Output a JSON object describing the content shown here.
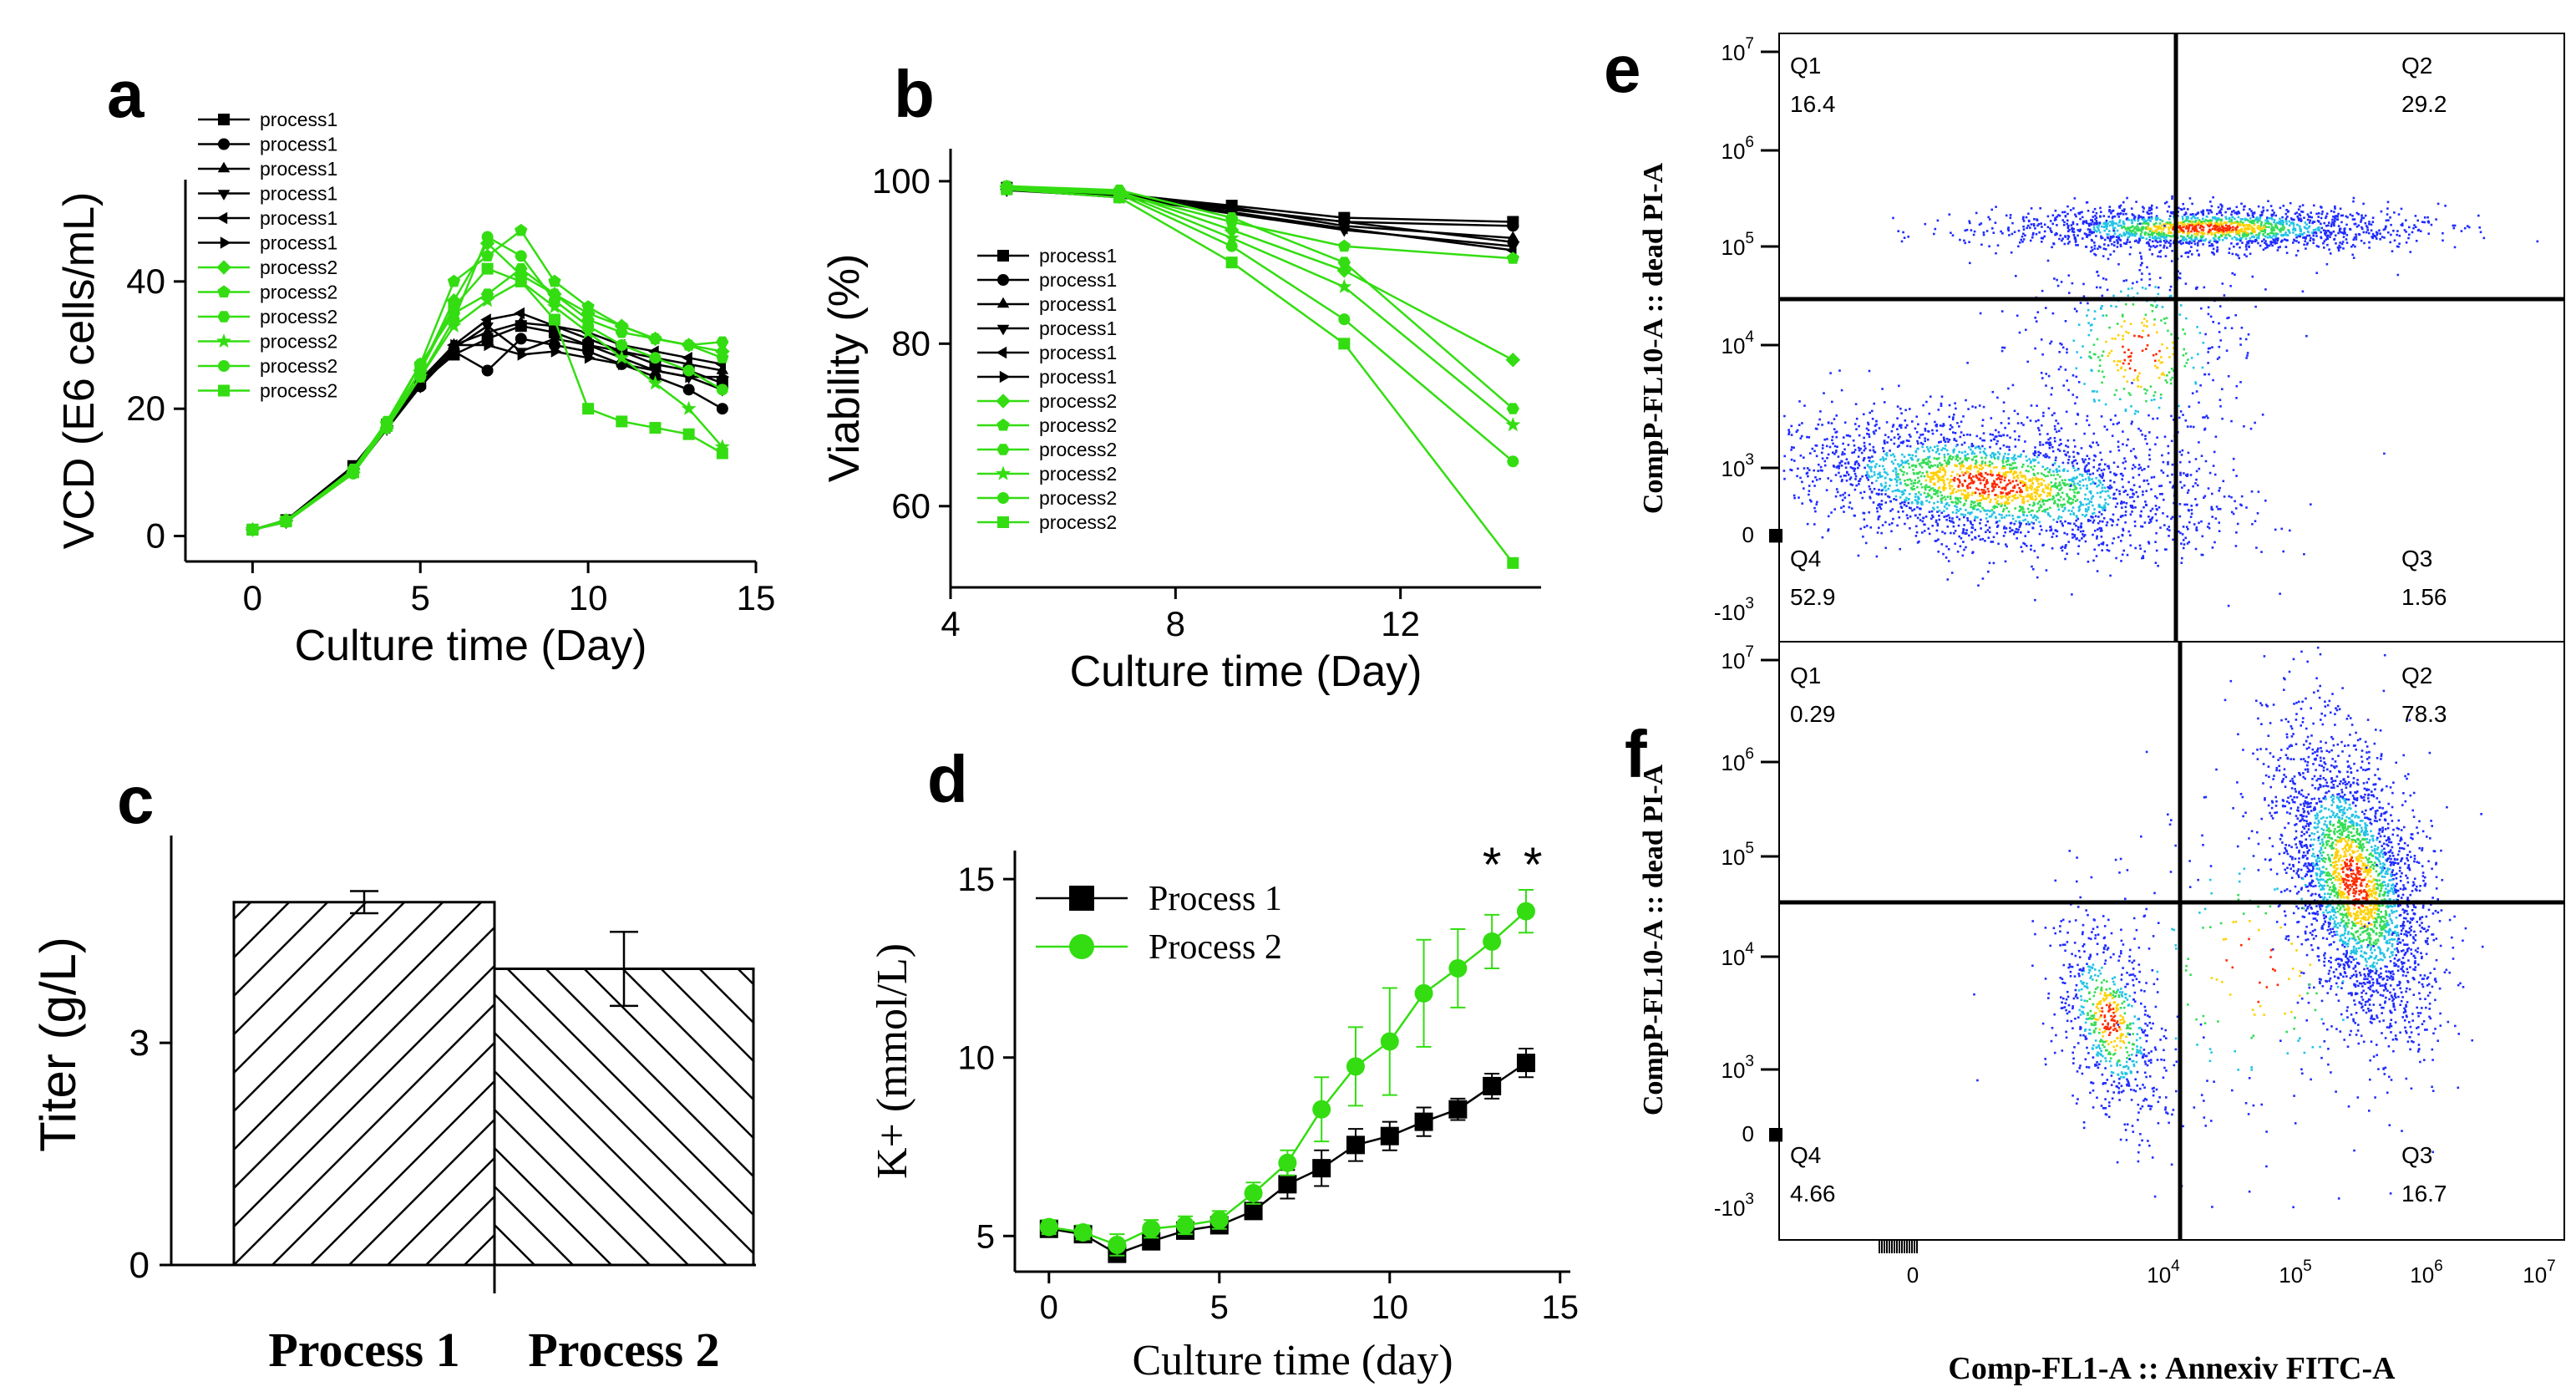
{
  "chart_data": [
    {
      "panel": "a",
      "type": "line",
      "xlabel": "Culture time (Day)",
      "ylabel": "VCD (E6 cells/mL)",
      "xlim": [
        -2,
        15
      ],
      "ylim": [
        -4,
        56
      ],
      "xticks": [
        0,
        5,
        10,
        15
      ],
      "yticks": [
        0,
        20,
        40
      ],
      "legend_position": "top-left",
      "colors": {
        "process1": "#000000",
        "process2": "#33dd11"
      },
      "series": [
        {
          "name": "process1",
          "group": 1,
          "marker": "square",
          "x": [
            0,
            1,
            3,
            4,
            5,
            6,
            7,
            8,
            9,
            10,
            11,
            12,
            13,
            14
          ],
          "y": [
            1,
            2.5,
            11,
            17.5,
            24,
            28.5,
            31,
            33,
            32,
            30,
            29,
            27,
            26,
            24
          ]
        },
        {
          "name": "process1",
          "group": 1,
          "marker": "circle",
          "x": [
            0,
            1,
            3,
            4,
            5,
            6,
            7,
            8,
            9,
            10,
            11,
            12,
            13,
            14
          ],
          "y": [
            1,
            2.3,
            10.5,
            17,
            23.5,
            29,
            26,
            31,
            30,
            29,
            27,
            25,
            23,
            20
          ]
        },
        {
          "name": "process1",
          "group": 1,
          "marker": "triangle-up",
          "x": [
            0,
            1,
            3,
            4,
            5,
            6,
            7,
            8,
            9,
            10,
            11,
            12,
            13,
            14
          ],
          "y": [
            1,
            2.4,
            10.8,
            17.2,
            24,
            30,
            32,
            33.5,
            33,
            31,
            29,
            28,
            27,
            26
          ]
        },
        {
          "name": "process1",
          "group": 1,
          "marker": "triangle-down",
          "x": [
            0,
            1,
            3,
            4,
            5,
            6,
            7,
            8,
            9,
            10,
            11,
            12,
            13,
            14
          ],
          "y": [
            1,
            2.2,
            10,
            16.8,
            23.5,
            29.5,
            33,
            29,
            31,
            30,
            28,
            26,
            25,
            23
          ]
        },
        {
          "name": "process1",
          "group": 1,
          "marker": "triangle-left",
          "x": [
            0,
            1,
            3,
            4,
            5,
            6,
            7,
            8,
            9,
            10,
            11,
            12,
            13,
            14
          ],
          "y": [
            1,
            2.3,
            10.3,
            17,
            24,
            30,
            34,
            35,
            33,
            32,
            30,
            29,
            28,
            27
          ]
        },
        {
          "name": "process1",
          "group": 1,
          "marker": "triangle-right",
          "x": [
            0,
            1,
            3,
            4,
            5,
            6,
            7,
            8,
            9,
            10,
            11,
            12,
            13,
            14
          ],
          "y": [
            1,
            2.5,
            10.6,
            17.3,
            24.5,
            30,
            30,
            28.5,
            29,
            28,
            27,
            26,
            25,
            25
          ]
        },
        {
          "name": "process2",
          "group": 2,
          "marker": "diamond",
          "x": [
            0,
            1,
            3,
            4,
            5,
            6,
            7,
            8,
            9,
            10,
            11,
            12,
            13,
            14
          ],
          "y": [
            1,
            2.4,
            10,
            17,
            26,
            37,
            46,
            41,
            38,
            35,
            33,
            31,
            30,
            29
          ]
        },
        {
          "name": "process2",
          "group": 2,
          "marker": "pentagon",
          "x": [
            0,
            1,
            3,
            4,
            5,
            6,
            7,
            8,
            9,
            10,
            11,
            12,
            13,
            14
          ],
          "y": [
            1,
            2.5,
            10.2,
            17.5,
            27,
            40,
            44,
            48,
            40,
            36,
            33,
            31,
            30,
            28
          ]
        },
        {
          "name": "process2",
          "group": 2,
          "marker": "hexagon",
          "x": [
            0,
            1,
            3,
            4,
            5,
            6,
            7,
            8,
            9,
            10,
            11,
            12,
            13,
            14
          ],
          "y": [
            1,
            2.3,
            10.5,
            18,
            27,
            35,
            38,
            42,
            38,
            34,
            32,
            31,
            30,
            30.5
          ]
        },
        {
          "name": "process2",
          "group": 2,
          "marker": "star",
          "x": [
            0,
            1,
            3,
            4,
            5,
            6,
            7,
            8,
            9,
            10,
            11,
            12,
            13,
            14
          ],
          "y": [
            1,
            2.4,
            10.1,
            17.6,
            25,
            33,
            37,
            40,
            36,
            32,
            28,
            24,
            20,
            14
          ]
        },
        {
          "name": "process2",
          "group": 2,
          "marker": "circle",
          "x": [
            0,
            1,
            3,
            4,
            5,
            6,
            7,
            8,
            9,
            10,
            11,
            12,
            13,
            14
          ],
          "y": [
            1,
            2.2,
            9.8,
            17,
            25,
            34,
            47,
            44,
            37,
            33,
            30,
            28,
            26,
            23
          ]
        },
        {
          "name": "process2",
          "group": 2,
          "marker": "square",
          "x": [
            0,
            1,
            3,
            4,
            5,
            6,
            7,
            8,
            9,
            10,
            11,
            12,
            13,
            14
          ],
          "y": [
            1,
            2.3,
            10,
            17.3,
            26,
            36,
            42,
            40,
            34,
            20,
            18,
            17,
            16,
            13
          ]
        }
      ]
    },
    {
      "panel": "b",
      "type": "line",
      "xlabel": "Culture time (Day)",
      "ylabel": "Viability (%)",
      "xlim": [
        4,
        14.5
      ],
      "ylim": [
        50,
        104
      ],
      "xticks": [
        4,
        8,
        12
      ],
      "yticks": [
        60,
        80,
        100
      ],
      "legend_position": "bottom-left",
      "series": [
        {
          "name": "process1",
          "group": 1,
          "marker": "square",
          "x": [
            5,
            7,
            9,
            11,
            14
          ],
          "y": [
            99.2,
            98.4,
            97,
            95.5,
            95
          ]
        },
        {
          "name": "process1",
          "group": 1,
          "marker": "circle",
          "x": [
            5,
            7,
            9,
            11,
            14
          ],
          "y": [
            99,
            98,
            96.5,
            95,
            94.5
          ]
        },
        {
          "name": "process1",
          "group": 1,
          "marker": "triangle-up",
          "x": [
            5,
            7,
            9,
            11,
            14
          ],
          "y": [
            99.1,
            98.2,
            96.8,
            94.5,
            93
          ]
        },
        {
          "name": "process1",
          "group": 1,
          "marker": "triangle-down",
          "x": [
            5,
            7,
            9,
            11,
            14
          ],
          "y": [
            98.9,
            98.1,
            96,
            94,
            92
          ]
        },
        {
          "name": "process1",
          "group": 1,
          "marker": "triangle-left",
          "x": [
            5,
            7,
            9,
            11,
            14
          ],
          "y": [
            99,
            98.3,
            96.2,
            94.2,
            91.5
          ]
        },
        {
          "name": "process1",
          "group": 1,
          "marker": "triangle-right",
          "x": [
            5,
            7,
            9,
            11,
            14
          ],
          "y": [
            99.2,
            98.5,
            96.6,
            95,
            92.5
          ]
        },
        {
          "name": "process2",
          "group": 2,
          "marker": "diamond",
          "x": [
            5,
            7,
            9,
            11,
            14
          ],
          "y": [
            99.3,
            98.7,
            94,
            89,
            78
          ]
        },
        {
          "name": "process2",
          "group": 2,
          "marker": "pentagon",
          "x": [
            5,
            7,
            9,
            11,
            14
          ],
          "y": [
            99,
            98.5,
            95,
            92,
            90.5
          ]
        },
        {
          "name": "process2",
          "group": 2,
          "marker": "hexagon",
          "x": [
            5,
            7,
            9,
            11,
            14
          ],
          "y": [
            99.4,
            98.9,
            95.5,
            90,
            72
          ]
        },
        {
          "name": "process2",
          "group": 2,
          "marker": "star",
          "x": [
            5,
            7,
            9,
            11,
            14
          ],
          "y": [
            99.2,
            98.6,
            93,
            87,
            70
          ]
        },
        {
          "name": "process2",
          "group": 2,
          "marker": "circle",
          "x": [
            5,
            7,
            9,
            11,
            14
          ],
          "y": [
            99.1,
            98.4,
            92,
            83,
            65.5
          ]
        },
        {
          "name": "process2",
          "group": 2,
          "marker": "square",
          "x": [
            5,
            7,
            9,
            11,
            14
          ],
          "y": [
            99,
            98,
            90,
            80,
            53
          ]
        }
      ]
    },
    {
      "panel": "c",
      "type": "bar",
      "ylabel": "Titer (g/L)",
      "categories": [
        "Process 1",
        "Process 2"
      ],
      "values": [
        4.9,
        4.0
      ],
      "errors": [
        0.15,
        0.5
      ],
      "ylim": [
        0,
        5.8
      ],
      "yticks": [
        0,
        3
      ]
    },
    {
      "panel": "d",
      "type": "line",
      "xlabel": "Culture time (day)",
      "ylabel": "K+ (mmol/L)",
      "xlim": [
        -1,
        15.3
      ],
      "ylim": [
        4,
        15.8
      ],
      "xticks": [
        0,
        5,
        10,
        15
      ],
      "yticks": [
        5,
        10,
        15
      ],
      "legend_position": "top-left",
      "significance": [
        {
          "x": 13,
          "label": "*"
        },
        {
          "x": 14.2,
          "label": "*"
        }
      ],
      "series": [
        {
          "name": "Process 1",
          "marker": "square",
          "x": [
            0,
            1,
            2,
            3,
            4,
            5,
            6,
            7,
            8,
            9,
            10,
            11,
            12,
            13,
            14
          ],
          "y": [
            5.2,
            5.05,
            4.5,
            4.85,
            5.15,
            5.3,
            5.7,
            6.45,
            6.9,
            7.55,
            7.8,
            8.2,
            8.55,
            9.2,
            9.85
          ],
          "err": [
            0.15,
            0.15,
            0.2,
            0.2,
            0.2,
            0.2,
            0.2,
            0.4,
            0.5,
            0.45,
            0.4,
            0.4,
            0.3,
            0.35,
            0.4
          ]
        },
        {
          "name": "Process 2",
          "marker": "circle",
          "x": [
            0,
            1,
            2,
            3,
            4,
            5,
            6,
            7,
            8,
            9,
            10,
            11,
            12,
            13,
            14
          ],
          "y": [
            5.25,
            5.1,
            4.75,
            5.2,
            5.3,
            5.45,
            6.2,
            7.05,
            8.55,
            9.75,
            10.45,
            11.8,
            12.5,
            13.25,
            14.1
          ],
          "err": [
            0.2,
            0.2,
            0.3,
            0.25,
            0.25,
            0.25,
            0.3,
            0.35,
            0.9,
            1.1,
            1.5,
            1.5,
            1.1,
            0.75,
            0.6
          ]
        }
      ]
    },
    {
      "panel": "e",
      "type": "scatter",
      "xlabel": "Comp-FL1-A :: Annexiv FITC-A",
      "ylabel": "CompP-FL10-A :: dead PI-A",
      "quadrants": [
        {
          "name": "Q1",
          "value": "16.4"
        },
        {
          "name": "Q2",
          "value": "29.2"
        },
        {
          "name": "Q3",
          "value": "1.56"
        },
        {
          "name": "Q4",
          "value": "52.9"
        }
      ],
      "y_axis_ticks": [
        "10^7",
        "10^6",
        "10^5",
        "10^4",
        "10^3",
        "0",
        "-10^3"
      ]
    },
    {
      "panel": "f",
      "type": "scatter",
      "xlabel": "Comp-FL1-A :: Annexiv FITC-A",
      "ylabel": "CompP-FL10-A :: dead PI-A",
      "quadrants": [
        {
          "name": "Q1",
          "value": "0.29"
        },
        {
          "name": "Q2",
          "value": "78.3"
        },
        {
          "name": "Q3",
          "value": "16.7"
        },
        {
          "name": "Q4",
          "value": "4.66"
        }
      ],
      "y_axis_ticks": [
        "10^7",
        "10^6",
        "10^5",
        "10^4",
        "10^3",
        "0",
        "-10^3"
      ],
      "x_axis_ticks": [
        "0",
        "10^4",
        "10^5",
        "10^6",
        "10^7"
      ]
    }
  ],
  "panel_letters": {
    "a": "a",
    "b": "b",
    "c": "c",
    "d": "d",
    "e": "e",
    "f": "f"
  },
  "flow": {
    "ylabel": "CompP-FL10-A :: dead PI-A",
    "xlabel": "Comp-FL1-A :: Annexiv FITC-A",
    "tick_base": "10",
    "exp": {
      "e7": "7",
      "e6": "6",
      "e5": "5",
      "e4": "4",
      "e3": "3"
    },
    "zero": "0",
    "neg": "-10",
    "e": {
      "q1": "Q1",
      "q1v": "16.4",
      "q2": "Q2",
      "q2v": "29.2",
      "q3": "Q3",
      "q3v": "1.56",
      "q4": "Q4",
      "q4v": "52.9"
    },
    "f": {
      "q1": "Q1",
      "q1v": "0.29",
      "q2": "Q2",
      "q2v": "78.3",
      "q3": "Q3",
      "q3v": "16.7",
      "q4": "Q4",
      "q4v": "4.66"
    }
  }
}
